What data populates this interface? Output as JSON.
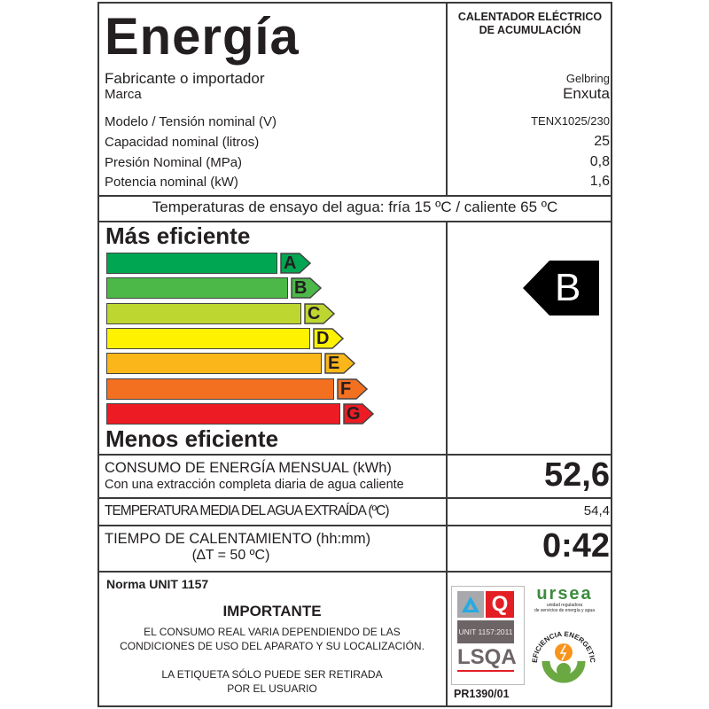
{
  "header": {
    "title": "Energía",
    "product_type_line1": "CALENTADOR ELÉCTRICO",
    "product_type_line2": "DE ACUMULACIÓN"
  },
  "specs": [
    {
      "label": "Fabricante o importador",
      "value": "Gelbring"
    },
    {
      "label": "Marca",
      "value": "Enxuta"
    },
    {
      "label": "Modelo / Tensión nominal (V)",
      "value": "TENX1025/230"
    },
    {
      "label": "Capacidad nominal (litros)",
      "value": "25"
    },
    {
      "label": "Presión Nominal (MPa)",
      "value": "0,8"
    },
    {
      "label": "Potencia nominal (kW)",
      "value": "1,6"
    }
  ],
  "test_temperatures": "Temperaturas de ensayo del agua: fría 15 ºC / caliente 65 ºC",
  "scale": {
    "top_label": "Más eficiente",
    "bottom_label": "Menos eficiente",
    "classes": [
      {
        "letter": "A",
        "color": "#00a651"
      },
      {
        "letter": "B",
        "color": "#4cb848"
      },
      {
        "letter": "C",
        "color": "#bed630"
      },
      {
        "letter": "D",
        "color": "#fff200"
      },
      {
        "letter": "E",
        "color": "#fbb619"
      },
      {
        "letter": "F",
        "color": "#f37021"
      },
      {
        "letter": "G",
        "color": "#ed1c24"
      }
    ],
    "rating": "B"
  },
  "consumption": {
    "label": "CONSUMO DE ENERGÍA MENSUAL (kWh)",
    "sublabel": "Con una extracción completa diaria de agua caliente",
    "value": "52,6"
  },
  "mean_temp": {
    "label": "TEMPERATURA MEDIA DEL AGUA EXTRAÍDA (ºC)",
    "value": "54,4"
  },
  "heating_time": {
    "label": "TIEMPO DE CALENTAMIENTO (hh:mm)",
    "sublabel": "(∆T = 50 ºC)",
    "value": "0:42"
  },
  "footer": {
    "norma": "Norma UNIT 1157",
    "important_title": "IMPORTANTE",
    "important_line1": "EL CONSUMO REAL VARIA DEPENDIENDO DE LAS",
    "important_line2": "CONDICIONES DE USO DEL APARATO Y SU LOCALIZACIÓN.",
    "removal_line1": "LA ETIQUETA SÓLO PUEDE SER RETIRADA",
    "removal_line2": "POR EL USUARIO",
    "cert_unit": "UNIT 1157:2011",
    "cert_logo": "LSQA",
    "cert_number": "PR1390/01",
    "ursea_logo": "ursea",
    "ursea_sub1": "unidad reguladora",
    "ursea_sub2": "de servicios de energía y agua",
    "efficiency_seal": "EFICIENCIA ENERGETICA"
  }
}
